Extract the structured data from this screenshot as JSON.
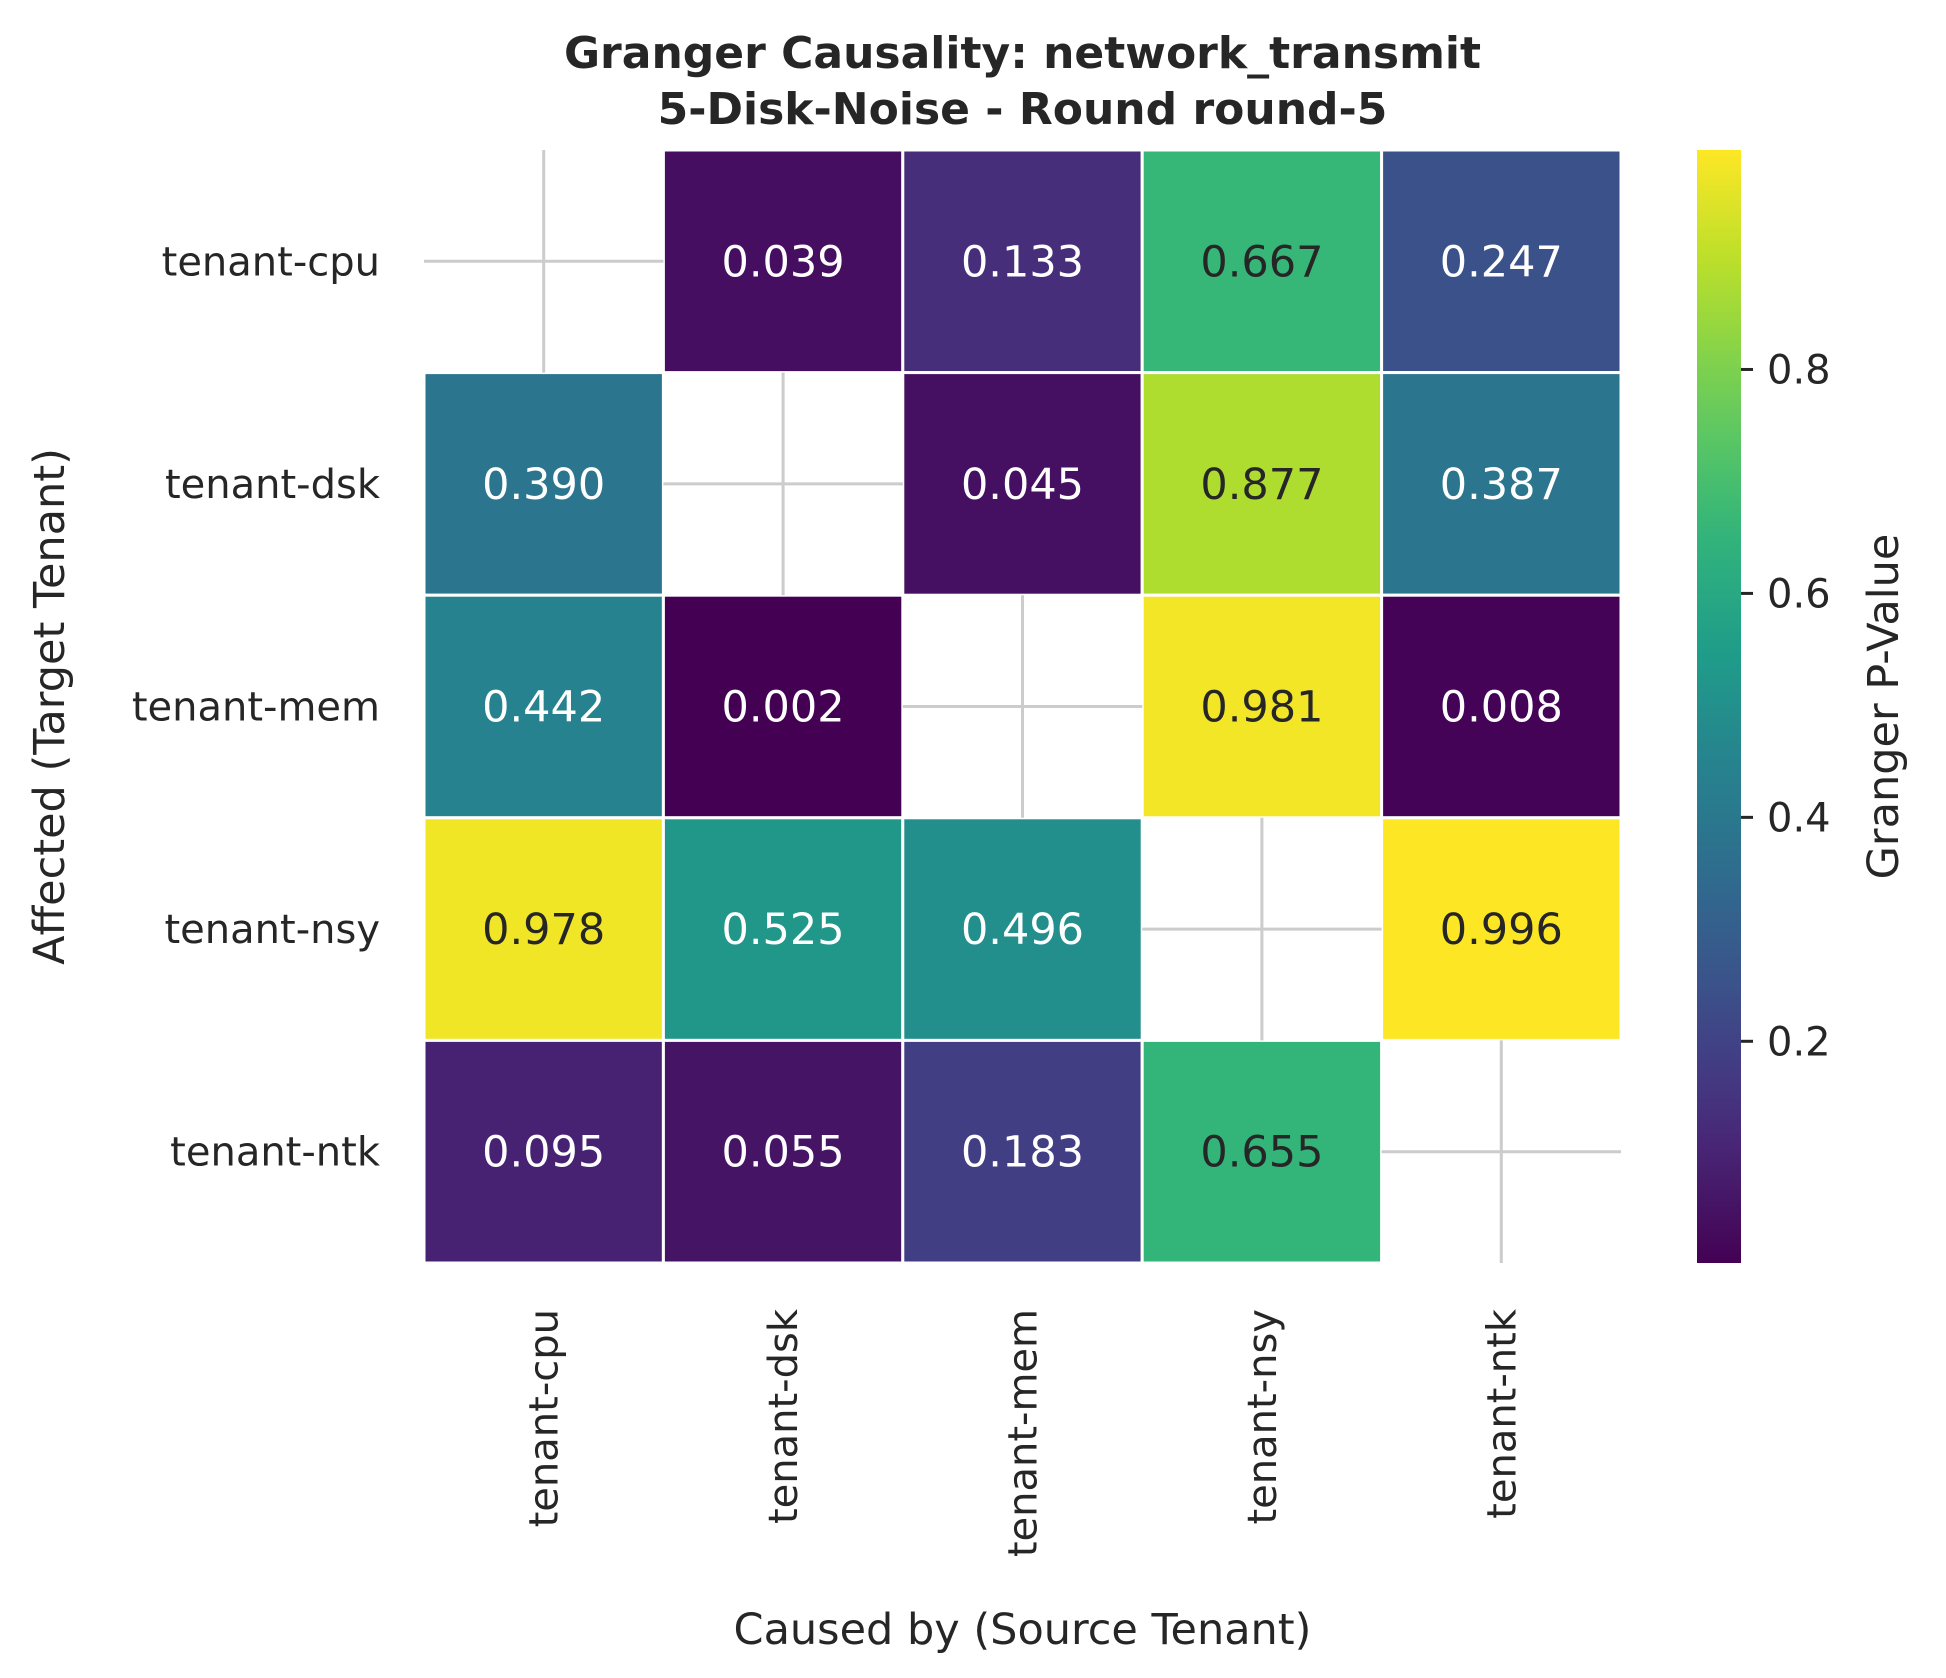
{
  "chart_data": {
    "type": "heatmap",
    "title": "Granger Causality: network_transmit",
    "subtitle": "5-Disk-Noise - Round round-5",
    "xlabel": "Caused by (Source Tenant)",
    "ylabel": "Affected (Target Tenant)",
    "x_categories": [
      "tenant-cpu",
      "tenant-dsk",
      "tenant-mem",
      "tenant-nsy",
      "tenant-ntk"
    ],
    "y_categories": [
      "tenant-cpu",
      "tenant-dsk",
      "tenant-mem",
      "tenant-nsy",
      "tenant-ntk"
    ],
    "values": [
      [
        null,
        0.039,
        0.133,
        0.667,
        0.247
      ],
      [
        0.39,
        null,
        0.045,
        0.877,
        0.387
      ],
      [
        0.442,
        0.002,
        null,
        0.981,
        0.008
      ],
      [
        0.978,
        0.525,
        0.496,
        null,
        0.996
      ],
      [
        0.095,
        0.055,
        0.183,
        0.655,
        null
      ]
    ],
    "value_labels": [
      [
        "",
        "0.039",
        "0.133",
        "0.667",
        "0.247"
      ],
      [
        "0.390",
        "",
        "0.045",
        "0.877",
        "0.387"
      ],
      [
        "0.442",
        "0.002",
        "",
        "0.981",
        "0.008"
      ],
      [
        "0.978",
        "0.525",
        "0.496",
        "",
        "0.996"
      ],
      [
        "0.095",
        "0.055",
        "0.183",
        "0.655",
        ""
      ]
    ],
    "colormap": "viridis",
    "vmin": 0.002,
    "vmax": 0.996,
    "colorbar": {
      "label": "Granger P-Value",
      "ticks": [
        0.2,
        0.4,
        0.6,
        0.8
      ],
      "tick_labels": [
        "0.2",
        "0.4",
        "0.6",
        "0.8"
      ]
    },
    "grid": false,
    "legend": "colorbar-right"
  }
}
